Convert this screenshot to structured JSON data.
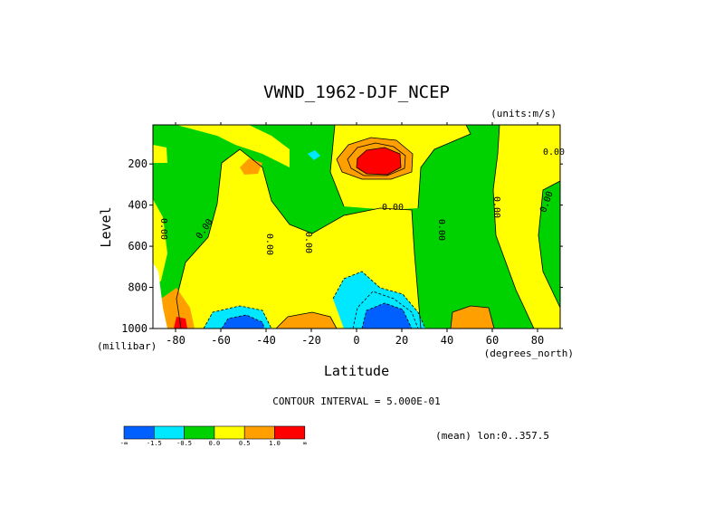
{
  "chart_data": {
    "type": "contour",
    "title": "VWND_1962-DJF_NCEP",
    "units_label": "(units:m/s)",
    "xlabel": "Latitude",
    "ylabel": "Level",
    "x_unit_label": "(degrees_north)",
    "y_unit_label": "(millibar)",
    "x_ticks": [
      -80,
      -60,
      -40,
      -20,
      0,
      20,
      40,
      60,
      80
    ],
    "y_ticks": [
      200,
      400,
      600,
      800,
      1000
    ],
    "x_range": [
      -90,
      90
    ],
    "y_range": [
      10,
      1000
    ],
    "contour_interval_label": "CONTOUR INTERVAL = 5.000E-01",
    "footer_label": "(mean) lon:0..357.5",
    "contour_labels": [
      "0.00",
      "0.00",
      "0.00",
      "0.00",
      "0.00",
      "0.00",
      "0.00",
      "0.00",
      "0.00"
    ],
    "legend": {
      "bins": [
        {
          "color": "#0060ff"
        },
        {
          "color": "#00e8ff"
        },
        {
          "color": "#00d200"
        },
        {
          "color": "#ffff00"
        },
        {
          "color": "#ffa000"
        },
        {
          "color": "#ff0000"
        }
      ],
      "labels": [
        "-∞",
        "-1.5",
        "-0.5",
        "0.0",
        "0.5",
        "1.0",
        "∞"
      ]
    }
  }
}
